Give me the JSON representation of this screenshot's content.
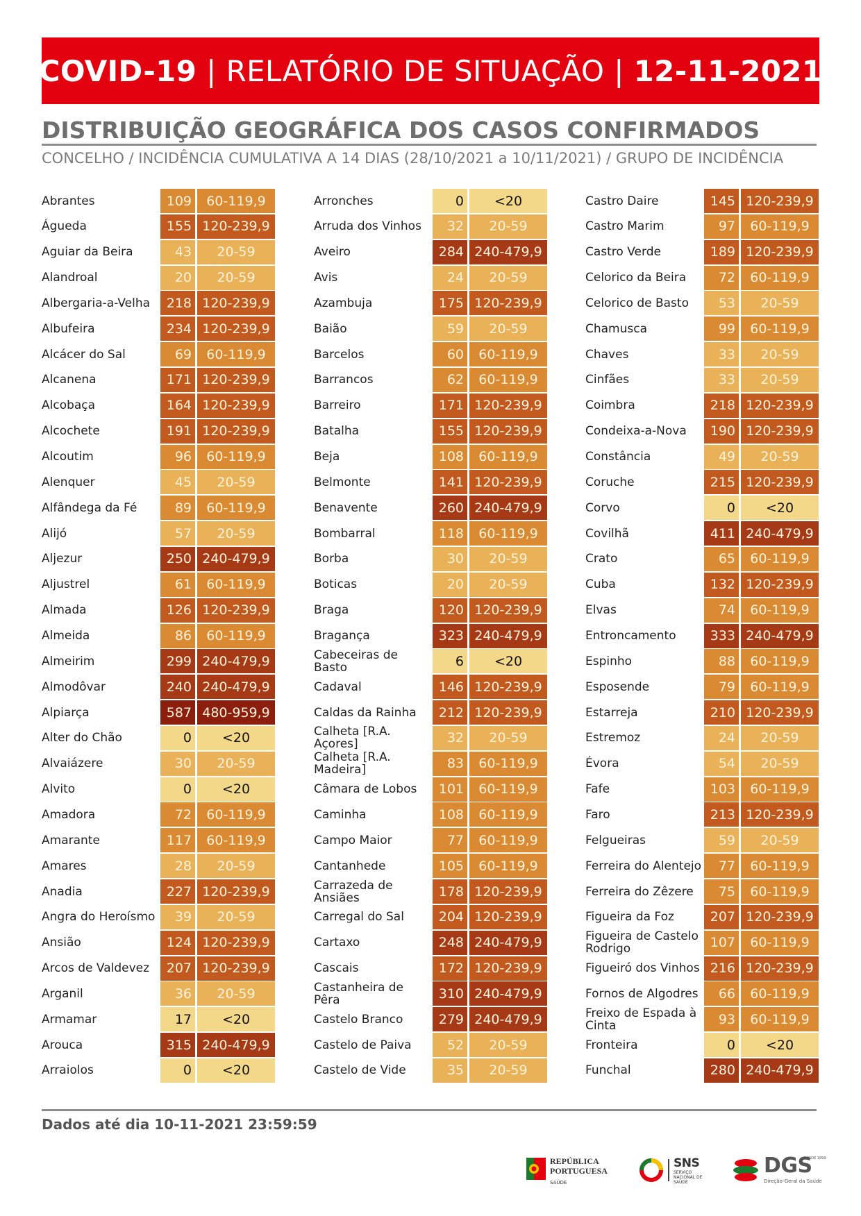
{
  "header": {
    "title_left": "COVID-19",
    "title_middle": "RELATÓRIO DE SITUAÇÃO",
    "title_date": "12-11-2021",
    "separator": "|"
  },
  "section": {
    "heading": "DISTRIBUIÇÃO GEOGRÁFICA DOS CASOS CONFIRMADOS",
    "subheading": "CONCELHO / INCIDÊNCIA CUMULATIVA A 14 DIAS (28/10/2021 a 10/11/2021) / GRUPO DE INCIDÊNCIA"
  },
  "incidence_colors": {
    "<20": "#f3d88a",
    "20-59": "#e9b258",
    "60-119,9": "#d98a32",
    "120-239,9": "#c25a20",
    "240-479,9": "#a63a17",
    "480-959,9": "#8b1e0c"
  },
  "columns": [
    [
      {
        "name": "Abrantes",
        "value": "109",
        "group": "60-119,9"
      },
      {
        "name": "Águeda",
        "value": "155",
        "group": "120-239,9"
      },
      {
        "name": "Aguiar da Beira",
        "value": "43",
        "group": "20-59"
      },
      {
        "name": "Alandroal",
        "value": "20",
        "group": "20-59"
      },
      {
        "name": "Albergaria-a-Velha",
        "value": "218",
        "group": "120-239,9"
      },
      {
        "name": "Albufeira",
        "value": "234",
        "group": "120-239,9"
      },
      {
        "name": "Alcácer do Sal",
        "value": "69",
        "group": "60-119,9"
      },
      {
        "name": "Alcanena",
        "value": "171",
        "group": "120-239,9"
      },
      {
        "name": "Alcobaça",
        "value": "164",
        "group": "120-239,9"
      },
      {
        "name": "Alcochete",
        "value": "191",
        "group": "120-239,9"
      },
      {
        "name": "Alcoutim",
        "value": "96",
        "group": "60-119,9"
      },
      {
        "name": "Alenquer",
        "value": "45",
        "group": "20-59"
      },
      {
        "name": "Alfândega da Fé",
        "value": "89",
        "group": "60-119,9"
      },
      {
        "name": "Alijó",
        "value": "57",
        "group": "20-59"
      },
      {
        "name": "Aljezur",
        "value": "250",
        "group": "240-479,9"
      },
      {
        "name": "Aljustrel",
        "value": "61",
        "group": "60-119,9"
      },
      {
        "name": "Almada",
        "value": "126",
        "group": "120-239,9"
      },
      {
        "name": "Almeida",
        "value": "86",
        "group": "60-119,9"
      },
      {
        "name": "Almeirim",
        "value": "299",
        "group": "240-479,9"
      },
      {
        "name": "Almodôvar",
        "value": "240",
        "group": "240-479,9"
      },
      {
        "name": "Alpiarça",
        "value": "587",
        "group": "480-959,9"
      },
      {
        "name": "Alter do Chão",
        "value": "0",
        "group": "<20"
      },
      {
        "name": "Alvaiázere",
        "value": "30",
        "group": "20-59"
      },
      {
        "name": "Alvito",
        "value": "0",
        "group": "<20"
      },
      {
        "name": "Amadora",
        "value": "72",
        "group": "60-119,9"
      },
      {
        "name": "Amarante",
        "value": "117",
        "group": "60-119,9"
      },
      {
        "name": "Amares",
        "value": "28",
        "group": "20-59"
      },
      {
        "name": "Anadia",
        "value": "227",
        "group": "120-239,9"
      },
      {
        "name": "Angra do Heroísmo",
        "value": "39",
        "group": "20-59"
      },
      {
        "name": "Ansião",
        "value": "124",
        "group": "120-239,9"
      },
      {
        "name": "Arcos de Valdevez",
        "value": "207",
        "group": "120-239,9"
      },
      {
        "name": "Arganil",
        "value": "36",
        "group": "20-59"
      },
      {
        "name": "Armamar",
        "value": "17",
        "group": "<20"
      },
      {
        "name": "Arouca",
        "value": "315",
        "group": "240-479,9"
      },
      {
        "name": "Arraiolos",
        "value": "0",
        "group": "<20"
      }
    ],
    [
      {
        "name": "Arronches",
        "value": "0",
        "group": "<20"
      },
      {
        "name": "Arruda dos Vinhos",
        "value": "32",
        "group": "20-59"
      },
      {
        "name": "Aveiro",
        "value": "284",
        "group": "240-479,9"
      },
      {
        "name": "Avis",
        "value": "24",
        "group": "20-59"
      },
      {
        "name": "Azambuja",
        "value": "175",
        "group": "120-239,9"
      },
      {
        "name": "Baião",
        "value": "59",
        "group": "20-59"
      },
      {
        "name": "Barcelos",
        "value": "60",
        "group": "60-119,9"
      },
      {
        "name": "Barrancos",
        "value": "62",
        "group": "60-119,9"
      },
      {
        "name": "Barreiro",
        "value": "171",
        "group": "120-239,9"
      },
      {
        "name": "Batalha",
        "value": "155",
        "group": "120-239,9"
      },
      {
        "name": "Beja",
        "value": "108",
        "group": "60-119,9"
      },
      {
        "name": "Belmonte",
        "value": "141",
        "group": "120-239,9"
      },
      {
        "name": "Benavente",
        "value": "260",
        "group": "240-479,9"
      },
      {
        "name": "Bombarral",
        "value": "118",
        "group": "60-119,9"
      },
      {
        "name": "Borba",
        "value": "30",
        "group": "20-59"
      },
      {
        "name": "Boticas",
        "value": "20",
        "group": "20-59"
      },
      {
        "name": "Braga",
        "value": "120",
        "group": "120-239,9"
      },
      {
        "name": "Bragança",
        "value": "323",
        "group": "240-479,9"
      },
      {
        "name": "Cabeceiras de Basto",
        "value": "6",
        "group": "<20"
      },
      {
        "name": "Cadaval",
        "value": "146",
        "group": "120-239,9"
      },
      {
        "name": "Caldas da Rainha",
        "value": "212",
        "group": "120-239,9"
      },
      {
        "name": "Calheta [R.A. Açores]",
        "value": "32",
        "group": "20-59"
      },
      {
        "name": "Calheta [R.A. Madeira]",
        "value": "83",
        "group": "60-119,9"
      },
      {
        "name": "Câmara de Lobos",
        "value": "101",
        "group": "60-119,9"
      },
      {
        "name": "Caminha",
        "value": "108",
        "group": "60-119,9"
      },
      {
        "name": "Campo Maior",
        "value": "77",
        "group": "60-119,9"
      },
      {
        "name": "Cantanhede",
        "value": "105",
        "group": "60-119,9"
      },
      {
        "name": "Carrazeda de Ansiães",
        "value": "178",
        "group": "120-239,9"
      },
      {
        "name": "Carregal do Sal",
        "value": "204",
        "group": "120-239,9"
      },
      {
        "name": "Cartaxo",
        "value": "248",
        "group": "240-479,9"
      },
      {
        "name": "Cascais",
        "value": "172",
        "group": "120-239,9"
      },
      {
        "name": "Castanheira de Pêra",
        "value": "310",
        "group": "240-479,9"
      },
      {
        "name": "Castelo Branco",
        "value": "279",
        "group": "240-479,9"
      },
      {
        "name": "Castelo de Paiva",
        "value": "52",
        "group": "20-59"
      },
      {
        "name": "Castelo de Vide",
        "value": "35",
        "group": "20-59"
      }
    ],
    [
      {
        "name": "Castro Daire",
        "value": "145",
        "group": "120-239,9"
      },
      {
        "name": "Castro Marim",
        "value": "97",
        "group": "60-119,9"
      },
      {
        "name": "Castro Verde",
        "value": "189",
        "group": "120-239,9"
      },
      {
        "name": "Celorico da Beira",
        "value": "72",
        "group": "60-119,9"
      },
      {
        "name": "Celorico de Basto",
        "value": "53",
        "group": "20-59"
      },
      {
        "name": "Chamusca",
        "value": "99",
        "group": "60-119,9"
      },
      {
        "name": "Chaves",
        "value": "33",
        "group": "20-59"
      },
      {
        "name": "Cinfães",
        "value": "33",
        "group": "20-59"
      },
      {
        "name": "Coimbra",
        "value": "218",
        "group": "120-239,9"
      },
      {
        "name": "Condeixa-a-Nova",
        "value": "190",
        "group": "120-239,9"
      },
      {
        "name": "Constância",
        "value": "49",
        "group": "20-59"
      },
      {
        "name": "Coruche",
        "value": "215",
        "group": "120-239,9"
      },
      {
        "name": "Corvo",
        "value": "0",
        "group": "<20"
      },
      {
        "name": "Covilhã",
        "value": "411",
        "group": "240-479,9"
      },
      {
        "name": "Crato",
        "value": "65",
        "group": "60-119,9"
      },
      {
        "name": "Cuba",
        "value": "132",
        "group": "120-239,9"
      },
      {
        "name": "Elvas",
        "value": "74",
        "group": "60-119,9"
      },
      {
        "name": "Entroncamento",
        "value": "333",
        "group": "240-479,9"
      },
      {
        "name": "Espinho",
        "value": "88",
        "group": "60-119,9"
      },
      {
        "name": "Esposende",
        "value": "79",
        "group": "60-119,9"
      },
      {
        "name": "Estarreja",
        "value": "210",
        "group": "120-239,9"
      },
      {
        "name": "Estremoz",
        "value": "24",
        "group": "20-59"
      },
      {
        "name": "Évora",
        "value": "54",
        "group": "20-59"
      },
      {
        "name": "Fafe",
        "value": "103",
        "group": "60-119,9"
      },
      {
        "name": "Faro",
        "value": "213",
        "group": "120-239,9"
      },
      {
        "name": "Felgueiras",
        "value": "59",
        "group": "20-59"
      },
      {
        "name": "Ferreira do Alentejo",
        "value": "77",
        "group": "60-119,9"
      },
      {
        "name": "Ferreira do Zêzere",
        "value": "75",
        "group": "60-119,9"
      },
      {
        "name": "Figueira da Foz",
        "value": "207",
        "group": "120-239,9"
      },
      {
        "name": "Figueira de Castelo Rodrigo",
        "value": "107",
        "group": "60-119,9"
      },
      {
        "name": "Figueiró dos Vinhos",
        "value": "216",
        "group": "120-239,9"
      },
      {
        "name": "Fornos de Algodres",
        "value": "66",
        "group": "60-119,9"
      },
      {
        "name": "Freixo de Espada à Cinta",
        "value": "93",
        "group": "60-119,9"
      },
      {
        "name": "Fronteira",
        "value": "0",
        "group": "<20"
      },
      {
        "name": "Funchal",
        "value": "280",
        "group": "240-479,9"
      }
    ]
  ],
  "footer": {
    "data_note": "Dados até dia 10-11-2021 23:59:59"
  },
  "logos": {
    "republica_line1": "REPÚBLICA",
    "republica_line2": "PORTUGUESA",
    "republica_sub": "SAÚDE",
    "sns": "SNS",
    "sns_sub": "SERVIÇO NACIONAL DE SAÚDE",
    "dgs": "DGS",
    "dgs_small": "DESDE 1899",
    "dgs_sub": "Direção-Geral da Saúde"
  }
}
